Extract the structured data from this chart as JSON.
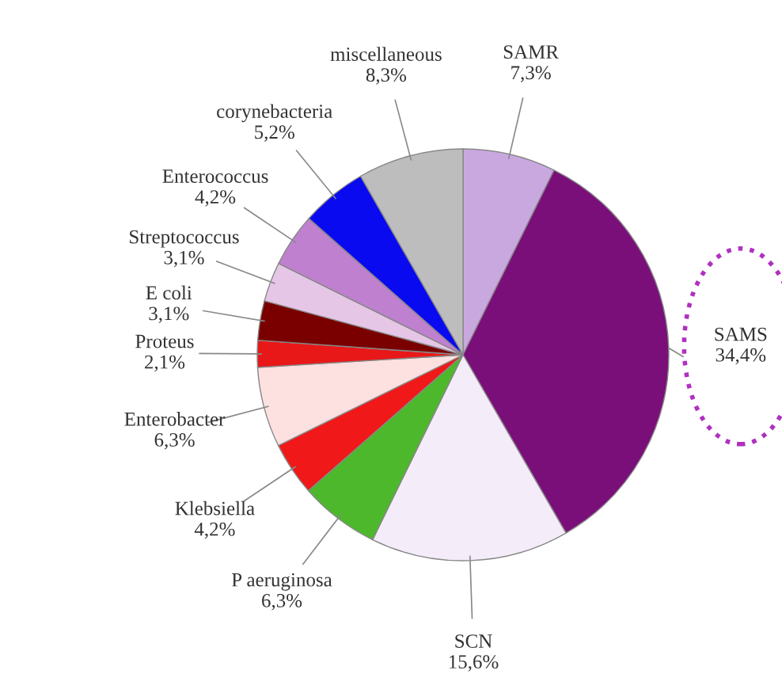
{
  "chart_data": {
    "type": "pie",
    "categories": [
      "SAMR",
      "SAMS",
      "SCN",
      "P aeruginosa",
      "Klebsiella",
      "Enterobacter",
      "Proteus",
      "E coli",
      "Streptococcus",
      "Enterococcus",
      "corynebacteria",
      "miscellaneous"
    ],
    "values": [
      7.3,
      34.4,
      15.6,
      6.3,
      4.2,
      6.3,
      2.1,
      3.1,
      3.1,
      4.2,
      5.2,
      8.3
    ],
    "value_labels": [
      "7,3%",
      "34,4%",
      "15,6%",
      "6,3%",
      "4,2%",
      "6,3%",
      "2,1%",
      "3,1%",
      "3,1%",
      "4,2%",
      "5,2%",
      "8,3%"
    ],
    "colors": [
      "#c9a8e0",
      "#7a0f7a",
      "#f4ecf8",
      "#4db82c",
      "#f01818",
      "#fde0e0",
      "#e81818",
      "#7a0000",
      "#e6c6e6",
      "#c080d0",
      "#0a0af0",
      "#bdbdbd"
    ],
    "legend": false
  }
}
